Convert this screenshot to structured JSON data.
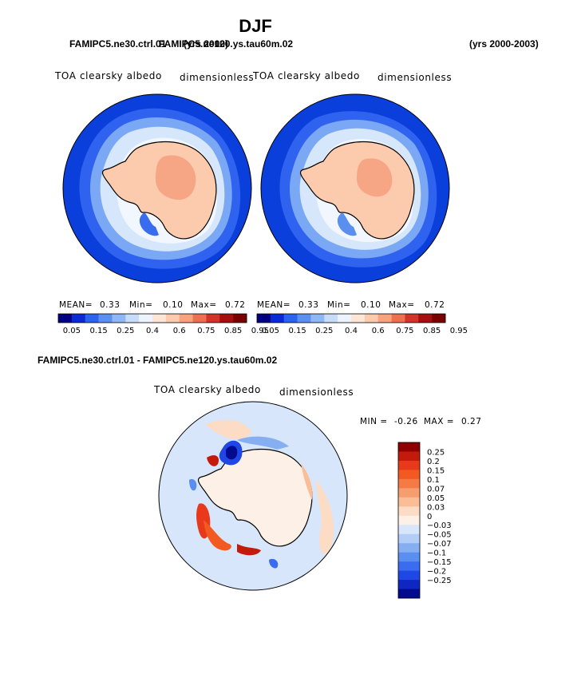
{
  "figure": {
    "season": "DJF",
    "caption_left_a": "FAMIPC5.ne30.ctrl.01",
    "caption_left_b": "FAMIPC5.ne120.ys.tau60m.02",
    "caption_left_a_years": "(yrs 2000)",
    "caption_right_years": "(yrs 2000-2003)",
    "diff_caption": "FAMIPC5.ne30.ctrl.01 - FAMIPC5.ne120.ys.tau60m.02"
  },
  "panels": [
    {
      "variable": "TOA clearsky albedo",
      "units": "dimensionless",
      "mean_label": "MEAN=",
      "mean": "0.33",
      "min_label": "Min=",
      "min": "0.10",
      "max_label": "Max=",
      "max": "0.72"
    },
    {
      "variable": "TOA clearsky albedo",
      "units": "dimensionless",
      "mean_label": "MEAN=",
      "mean": "0.33",
      "min_label": "Min=",
      "min": "0.10",
      "max_label": "Max=",
      "max": "0.72"
    }
  ],
  "diff_panel": {
    "variable": "TOA clearsky albedo",
    "units": "dimensionless",
    "min_label": "MIN =",
    "min": "-0.26",
    "max_label": "MAX =",
    "max": "0.27"
  },
  "colorbar_abs": {
    "ticks": [
      "0.05",
      "0.15",
      "0.25",
      "0.4",
      "0.6",
      "0.75",
      "0.85",
      "0.95"
    ],
    "colors": [
      "#000080",
      "#0a2ad6",
      "#2b63ef",
      "#5b8ff2",
      "#8fb6f5",
      "#c6dcf8",
      "#eef4ff",
      "#fde6d6",
      "#fccaad",
      "#f9a27e",
      "#ef7050",
      "#d1352a",
      "#a60f0f",
      "#7a0000"
    ]
  },
  "colorbar_diff": {
    "ticks": [
      "0.25",
      "0.2",
      "0.15",
      "0.1",
      "0.07",
      "0.05",
      "0.03",
      "0",
      "−0.03",
      "−0.05",
      "−0.07",
      "−0.1",
      "−0.15",
      "−0.2",
      "−0.25"
    ],
    "colors": [
      "#8e0000",
      "#c41a0b",
      "#e8391a",
      "#f25a22",
      "#f57a45",
      "#f79e70",
      "#fabd96",
      "#fcdcc4",
      "#fdf0e6",
      "#d8e6fb",
      "#b2cdf6",
      "#86aff1",
      "#5a8eef",
      "#3a6cf0",
      "#1f47e6",
      "#0e26c2",
      "#020a8e"
    ]
  },
  "chart_data": {
    "type": "heatmap",
    "title": "DJF",
    "map_projection": "south polar stereographic",
    "panels": [
      {
        "run": "FAMIPC5.ne30.ctrl.01 (yrs 2000)",
        "variable": "TOA clearsky albedo",
        "units": "dimensionless",
        "mean": 0.33,
        "min": 0.1,
        "max": 0.72
      },
      {
        "run": "FAMIPC5.ne120.ys.tau60m.02 (yrs 2000-2003)",
        "variable": "TOA clearsky albedo",
        "units": "dimensionless",
        "mean": 0.33,
        "min": 0.1,
        "max": 0.72
      },
      {
        "run": "FAMIPC5.ne30.ctrl.01 - FAMIPC5.ne120.ys.tau60m.02",
        "variable": "TOA clearsky albedo",
        "units": "dimensionless",
        "min": -0.26,
        "max": 0.27
      }
    ],
    "colorbar_levels_abs": [
      0.05,
      0.15,
      0.25,
      0.4,
      0.6,
      0.75,
      0.85,
      0.95
    ],
    "colorbar_levels_diff": [
      0.25,
      0.2,
      0.15,
      0.1,
      0.07,
      0.05,
      0.03,
      0,
      -0.03,
      -0.05,
      -0.07,
      -0.1,
      -0.15,
      -0.2,
      -0.25
    ]
  }
}
